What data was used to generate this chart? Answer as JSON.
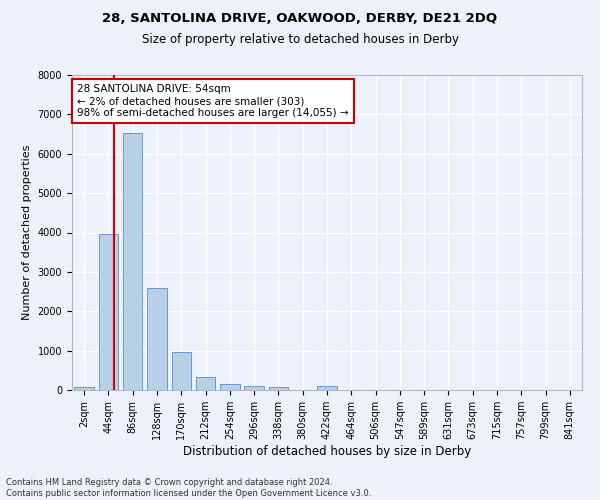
{
  "title1": "28, SANTOLINA DRIVE, OAKWOOD, DERBY, DE21 2DQ",
  "title2": "Size of property relative to detached houses in Derby",
  "xlabel": "Distribution of detached houses by size in Derby",
  "ylabel": "Number of detached properties",
  "categories": [
    "2sqm",
    "44sqm",
    "86sqm",
    "128sqm",
    "170sqm",
    "212sqm",
    "254sqm",
    "296sqm",
    "338sqm",
    "380sqm",
    "422sqm",
    "464sqm",
    "506sqm",
    "547sqm",
    "589sqm",
    "631sqm",
    "673sqm",
    "715sqm",
    "757sqm",
    "799sqm",
    "841sqm"
  ],
  "values": [
    80,
    3950,
    6520,
    2580,
    960,
    320,
    145,
    110,
    70,
    0,
    90,
    0,
    0,
    0,
    0,
    0,
    0,
    0,
    0,
    0,
    0
  ],
  "bar_color": "#b8cfe8",
  "bar_edge_color": "#6699cc",
  "vline_color": "#cc0000",
  "annotation_text": "28 SANTOLINA DRIVE: 54sqm\n← 2% of detached houses are smaller (303)\n98% of semi-detached houses are larger (14,055) →",
  "annotation_box_color": "#ffffff",
  "annotation_box_edge": "#cc0000",
  "ylim": [
    0,
    8000
  ],
  "yticks": [
    0,
    1000,
    2000,
    3000,
    4000,
    5000,
    6000,
    7000,
    8000
  ],
  "bg_color": "#edf2fa",
  "grid_color": "#ffffff",
  "footer": "Contains HM Land Registry data © Crown copyright and database right 2024.\nContains public sector information licensed under the Open Government Licence v3.0.",
  "title1_fontsize": 9.5,
  "title2_fontsize": 8.5,
  "xlabel_fontsize": 8.5,
  "ylabel_fontsize": 8,
  "tick_fontsize": 7,
  "annot_fontsize": 7.5,
  "footer_fontsize": 6
}
